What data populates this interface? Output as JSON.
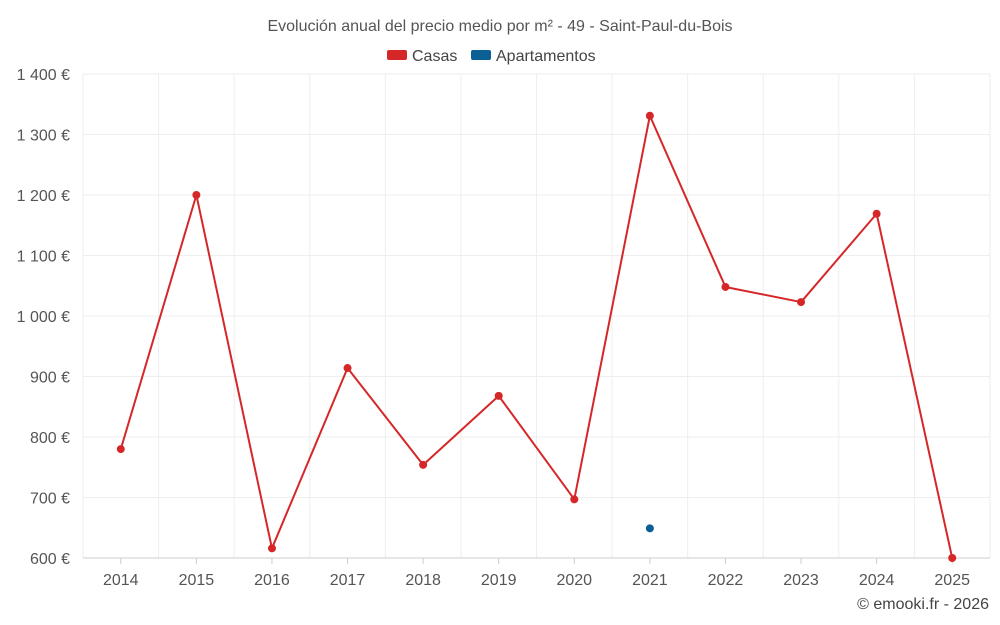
{
  "chart_data": {
    "type": "line",
    "title": "Evolución anual del precio medio por m² - 49 - Saint-Paul-du-Bois",
    "categories": [
      "2014",
      "2015",
      "2016",
      "2017",
      "2018",
      "2019",
      "2020",
      "2021",
      "2022",
      "2023",
      "2024",
      "2025"
    ],
    "series": [
      {
        "name": "Casas",
        "color": "#d62728",
        "values": [
          780,
          1200,
          616,
          914,
          754,
          868,
          697,
          1331,
          1048,
          1023,
          1169,
          600
        ]
      },
      {
        "name": "Apartamentos",
        "color": "#0b5f95",
        "values": [
          null,
          null,
          null,
          null,
          null,
          null,
          null,
          649,
          null,
          null,
          null,
          null
        ]
      }
    ],
    "ylim": [
      600,
      1400
    ],
    "yticks": [
      {
        "value": 600,
        "label": "600 €"
      },
      {
        "value": 700,
        "label": "700 €"
      },
      {
        "value": 800,
        "label": "800 €"
      },
      {
        "value": 900,
        "label": "900 €"
      },
      {
        "value": 1000,
        "label": "1 000 €"
      },
      {
        "value": 1100,
        "label": "1 100 €"
      },
      {
        "value": 1200,
        "label": "1 200 €"
      },
      {
        "value": 1300,
        "label": "1 300 €"
      },
      {
        "value": 1400,
        "label": "1 400 €"
      }
    ],
    "grid": true,
    "legend_position": "top-center",
    "credit": "© emooki.fr - 2026"
  }
}
